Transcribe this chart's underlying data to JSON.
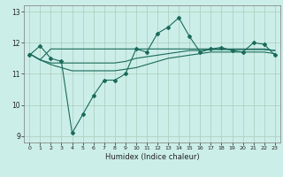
{
  "title": "",
  "xlabel": "Humidex (Indice chaleur)",
  "ylabel": "",
  "bg_color": "#cceee8",
  "grid_color": "#aaccbb",
  "line_color": "#1a6b5a",
  "xlim": [
    -0.5,
    23.5
  ],
  "ylim": [
    8.8,
    13.2
  ],
  "yticks": [
    9,
    10,
    11,
    12,
    13
  ],
  "xticks": [
    0,
    1,
    2,
    3,
    4,
    5,
    6,
    7,
    8,
    9,
    10,
    11,
    12,
    13,
    14,
    15,
    16,
    17,
    18,
    19,
    20,
    21,
    22,
    23
  ],
  "line1": [
    11.6,
    11.9,
    11.5,
    11.4,
    9.1,
    9.7,
    10.3,
    10.8,
    10.8,
    11.0,
    11.8,
    11.7,
    12.3,
    12.5,
    12.8,
    12.2,
    11.7,
    11.8,
    11.85,
    11.75,
    11.7,
    12.0,
    11.95,
    11.6
  ],
  "line2": [
    11.65,
    11.45,
    11.8,
    11.8,
    11.8,
    11.8,
    11.8,
    11.8,
    11.8,
    11.8,
    11.8,
    11.8,
    11.8,
    11.8,
    11.8,
    11.8,
    11.8,
    11.8,
    11.8,
    11.8,
    11.8,
    11.8,
    11.8,
    11.75
  ],
  "line3": [
    11.65,
    11.45,
    11.35,
    11.35,
    11.35,
    11.35,
    11.35,
    11.35,
    11.35,
    11.4,
    11.5,
    11.55,
    11.6,
    11.65,
    11.7,
    11.75,
    11.75,
    11.78,
    11.78,
    11.78,
    11.78,
    11.78,
    11.78,
    11.75
  ],
  "line4": [
    11.65,
    11.45,
    11.3,
    11.2,
    11.1,
    11.1,
    11.1,
    11.1,
    11.1,
    11.15,
    11.2,
    11.3,
    11.4,
    11.5,
    11.55,
    11.6,
    11.65,
    11.7,
    11.7,
    11.7,
    11.7,
    11.7,
    11.7,
    11.65
  ],
  "marker": "D",
  "markersize": 2.0,
  "linewidth": 0.8
}
